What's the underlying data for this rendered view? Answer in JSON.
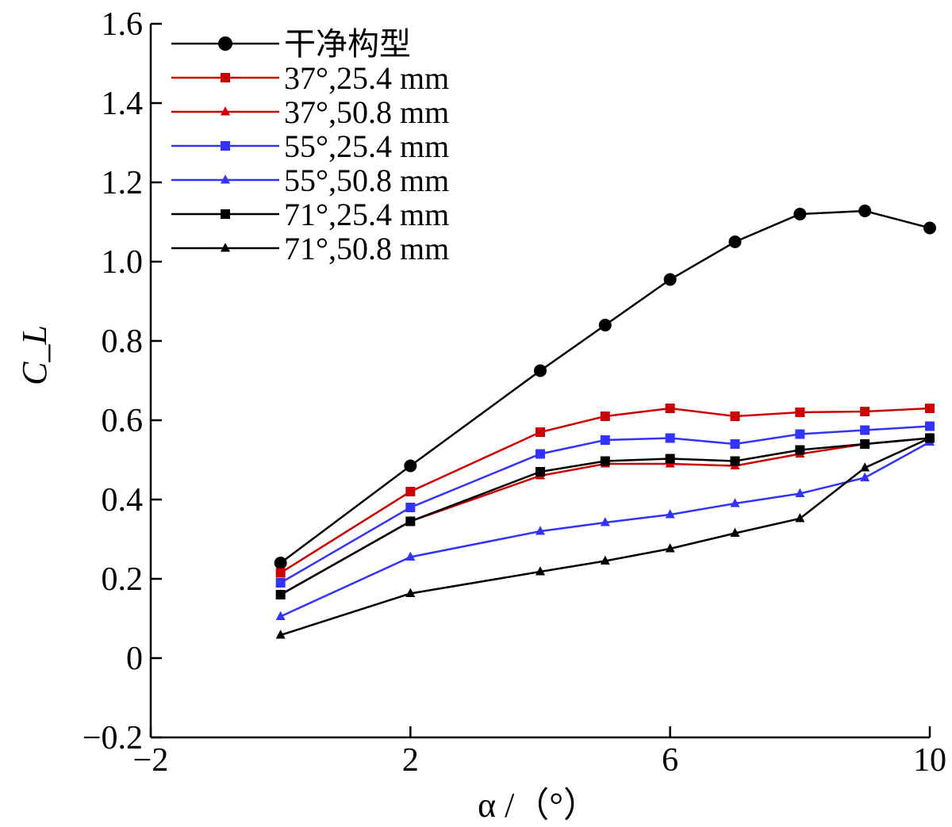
{
  "chart_data": {
    "type": "line",
    "xlabel": "α /（°）",
    "ylabel": "C_L",
    "xlim": [
      -2,
      10
    ],
    "ylim": [
      -0.2,
      1.6
    ],
    "xticks": [
      "−2",
      "2",
      "6",
      "10"
    ],
    "xtick_values": [
      -2,
      2,
      6,
      10
    ],
    "yticks": [
      "−0.2",
      "0",
      "0.2",
      "0.4",
      "0.6",
      "0.8",
      "1.0",
      "1.2",
      "1.4",
      "1.6"
    ],
    "ytick_values": [
      -0.2,
      0,
      0.2,
      0.4,
      0.6,
      0.8,
      1.0,
      1.2,
      1.4,
      1.6
    ],
    "grid": false,
    "legend_position": "top-left",
    "series": [
      {
        "name": "干净构型",
        "color": "#000000",
        "marker": "circle",
        "x": [
          0,
          2,
          4,
          5,
          6,
          7,
          8,
          9,
          10
        ],
        "y": [
          0.24,
          0.485,
          0.725,
          0.84,
          0.955,
          1.05,
          1.12,
          1.128,
          1.085
        ]
      },
      {
        "name": "37°,25.4 mm",
        "color": "#cc0000",
        "marker": "square",
        "x": [
          0,
          2,
          4,
          5,
          6,
          7,
          8,
          9,
          10
        ],
        "y": [
          0.215,
          0.42,
          0.57,
          0.61,
          0.63,
          0.61,
          0.62,
          0.622,
          0.63
        ]
      },
      {
        "name": "37°,50.8 mm",
        "color": "#cc0000",
        "marker": "triangle",
        "x": [
          0,
          2,
          4,
          5,
          6,
          7,
          8,
          9,
          10
        ],
        "y": [
          0.16,
          0.345,
          0.46,
          0.49,
          0.49,
          0.485,
          0.515,
          0.54,
          0.555
        ]
      },
      {
        "name": "55°,25.4 mm",
        "color": "#3333ff",
        "marker": "square",
        "x": [
          0,
          2,
          4,
          5,
          6,
          7,
          8,
          9,
          10
        ],
        "y": [
          0.19,
          0.38,
          0.515,
          0.55,
          0.555,
          0.54,
          0.565,
          0.575,
          0.585
        ]
      },
      {
        "name": "55°,50.8 mm",
        "color": "#3333ff",
        "marker": "triangle",
        "x": [
          0,
          2,
          4,
          5,
          6,
          7,
          8,
          9,
          10
        ],
        "y": [
          0.105,
          0.255,
          0.32,
          0.342,
          0.362,
          0.39,
          0.415,
          0.455,
          0.545
        ]
      },
      {
        "name": "71°,25.4 mm",
        "color": "#000000",
        "marker": "square",
        "x": [
          0,
          2,
          4,
          5,
          6,
          7,
          8,
          9,
          10
        ],
        "y": [
          0.16,
          0.345,
          0.47,
          0.497,
          0.503,
          0.497,
          0.525,
          0.54,
          0.555
        ]
      },
      {
        "name": "71°,50.8 mm",
        "color": "#000000",
        "marker": "triangle",
        "x": [
          0,
          2,
          4,
          5,
          6,
          7,
          8,
          9,
          10
        ],
        "y": [
          0.058,
          0.163,
          0.218,
          0.245,
          0.276,
          0.315,
          0.352,
          0.48,
          0.555
        ]
      }
    ]
  }
}
